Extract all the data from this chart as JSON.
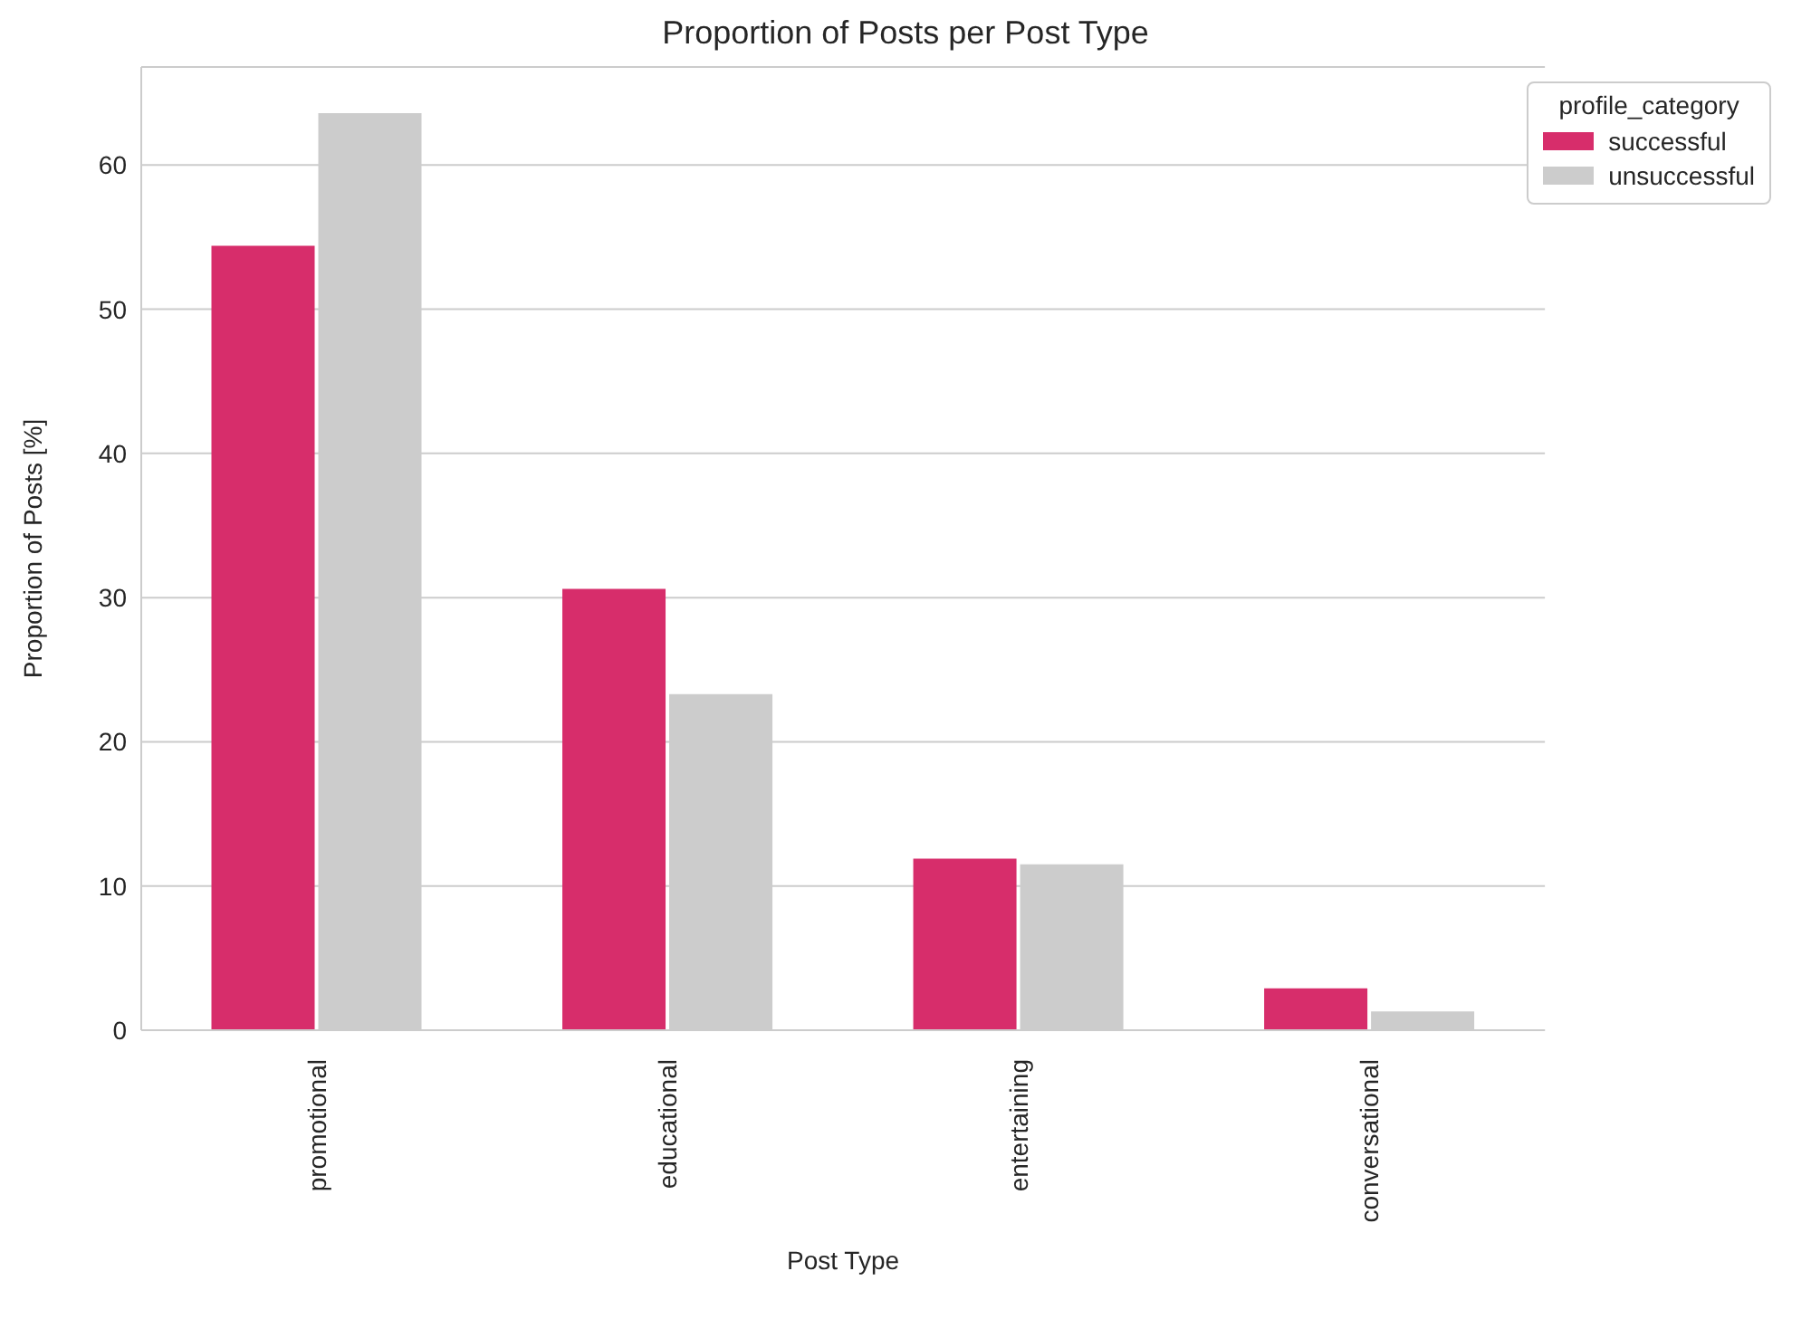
{
  "chart_data": {
    "type": "bar",
    "title": "Proportion of Posts per Post Type",
    "xlabel": "Post Type",
    "ylabel": "Proportion of Posts [%]",
    "legend_title": "profile_category",
    "categories": [
      "promotional",
      "educational",
      "entertaining",
      "conversational"
    ],
    "series": [
      {
        "name": "successful",
        "color": "#d72d6b",
        "values": [
          54.4,
          30.6,
          11.9,
          2.9
        ]
      },
      {
        "name": "unsuccessful",
        "color": "#cccccc",
        "values": [
          63.6,
          23.3,
          11.5,
          1.3
        ]
      }
    ],
    "ylim": [
      0,
      66.8
    ],
    "yticks": [
      0,
      10,
      20,
      30,
      40,
      50,
      60
    ],
    "grid": "y",
    "legend": "top right"
  }
}
